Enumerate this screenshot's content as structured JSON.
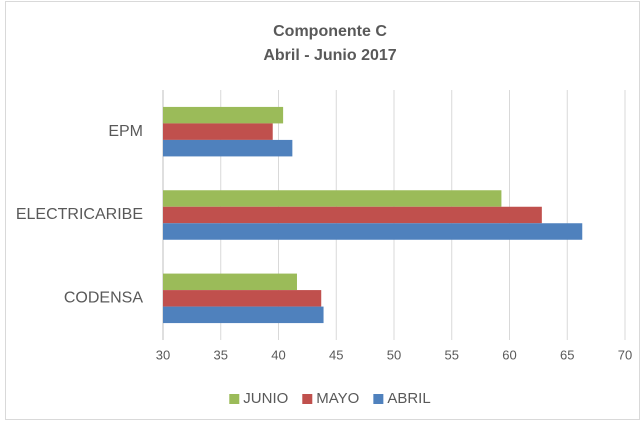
{
  "chart_data": {
    "type": "barh",
    "title": "Componente C",
    "subtitle": "Abril - Junio 2017",
    "categories": [
      "EPM",
      "ELECTRICARIBE",
      "CODENSA"
    ],
    "series": [
      {
        "name": "JUNIO",
        "color": "#9bbb59",
        "values": [
          40.4,
          59.3,
          41.6
        ]
      },
      {
        "name": "MAYO",
        "color": "#c0504d",
        "values": [
          39.5,
          62.8,
          43.7
        ]
      },
      {
        "name": "ABRIL",
        "color": "#4f81bd",
        "values": [
          41.2,
          66.3,
          43.9
        ]
      }
    ],
    "xlim": [
      30,
      70
    ],
    "xticks": [
      30,
      35,
      40,
      45,
      50,
      55,
      60,
      65,
      70
    ],
    "grid": true,
    "legend": "bottom"
  }
}
